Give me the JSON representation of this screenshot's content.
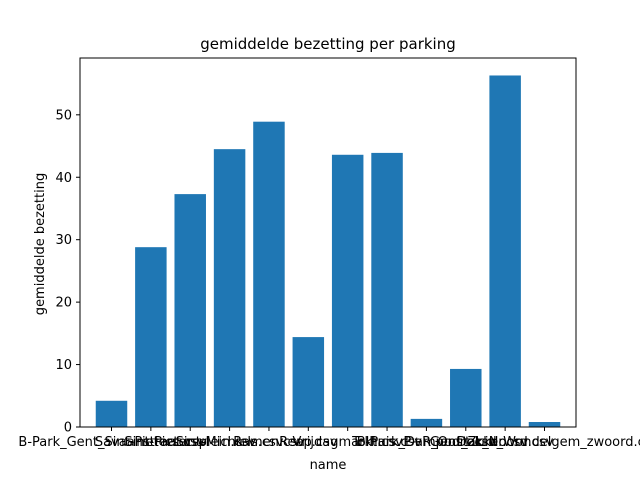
{
  "chart_data": {
    "type": "bar",
    "title": "gemiddelde bezetting per parking",
    "xlabel": "name",
    "ylabel": "gemiddelde bezetting",
    "categories": [
      "B-Park_Gent_Sint-Pieters.csv",
      "Savaanstraat.csv",
      "Sint-Pietersplein.csv",
      "Sint-Michiels.csv",
      "Ramen.csv",
      "Reep.csv",
      "Vrijdagmarkt.csv",
      "Tolhuis.csv",
      "B-Park_Dampoort.csv",
      "P+R_Oostakker.csv",
      "Dok_Noord.csv",
      "Gent_Zuid_Wondelgem_zwoord.csv"
    ],
    "values": [
      4.2,
      28.8,
      37.3,
      44.5,
      48.9,
      14.4,
      43.6,
      43.9,
      1.3,
      9.3,
      56.3,
      0.8
    ],
    "yticks": [
      0,
      10,
      20,
      30,
      40,
      50
    ],
    "ylim": [
      0,
      59.1
    ],
    "bar_color": "#1f77b4",
    "grid": false,
    "legend": "none"
  }
}
